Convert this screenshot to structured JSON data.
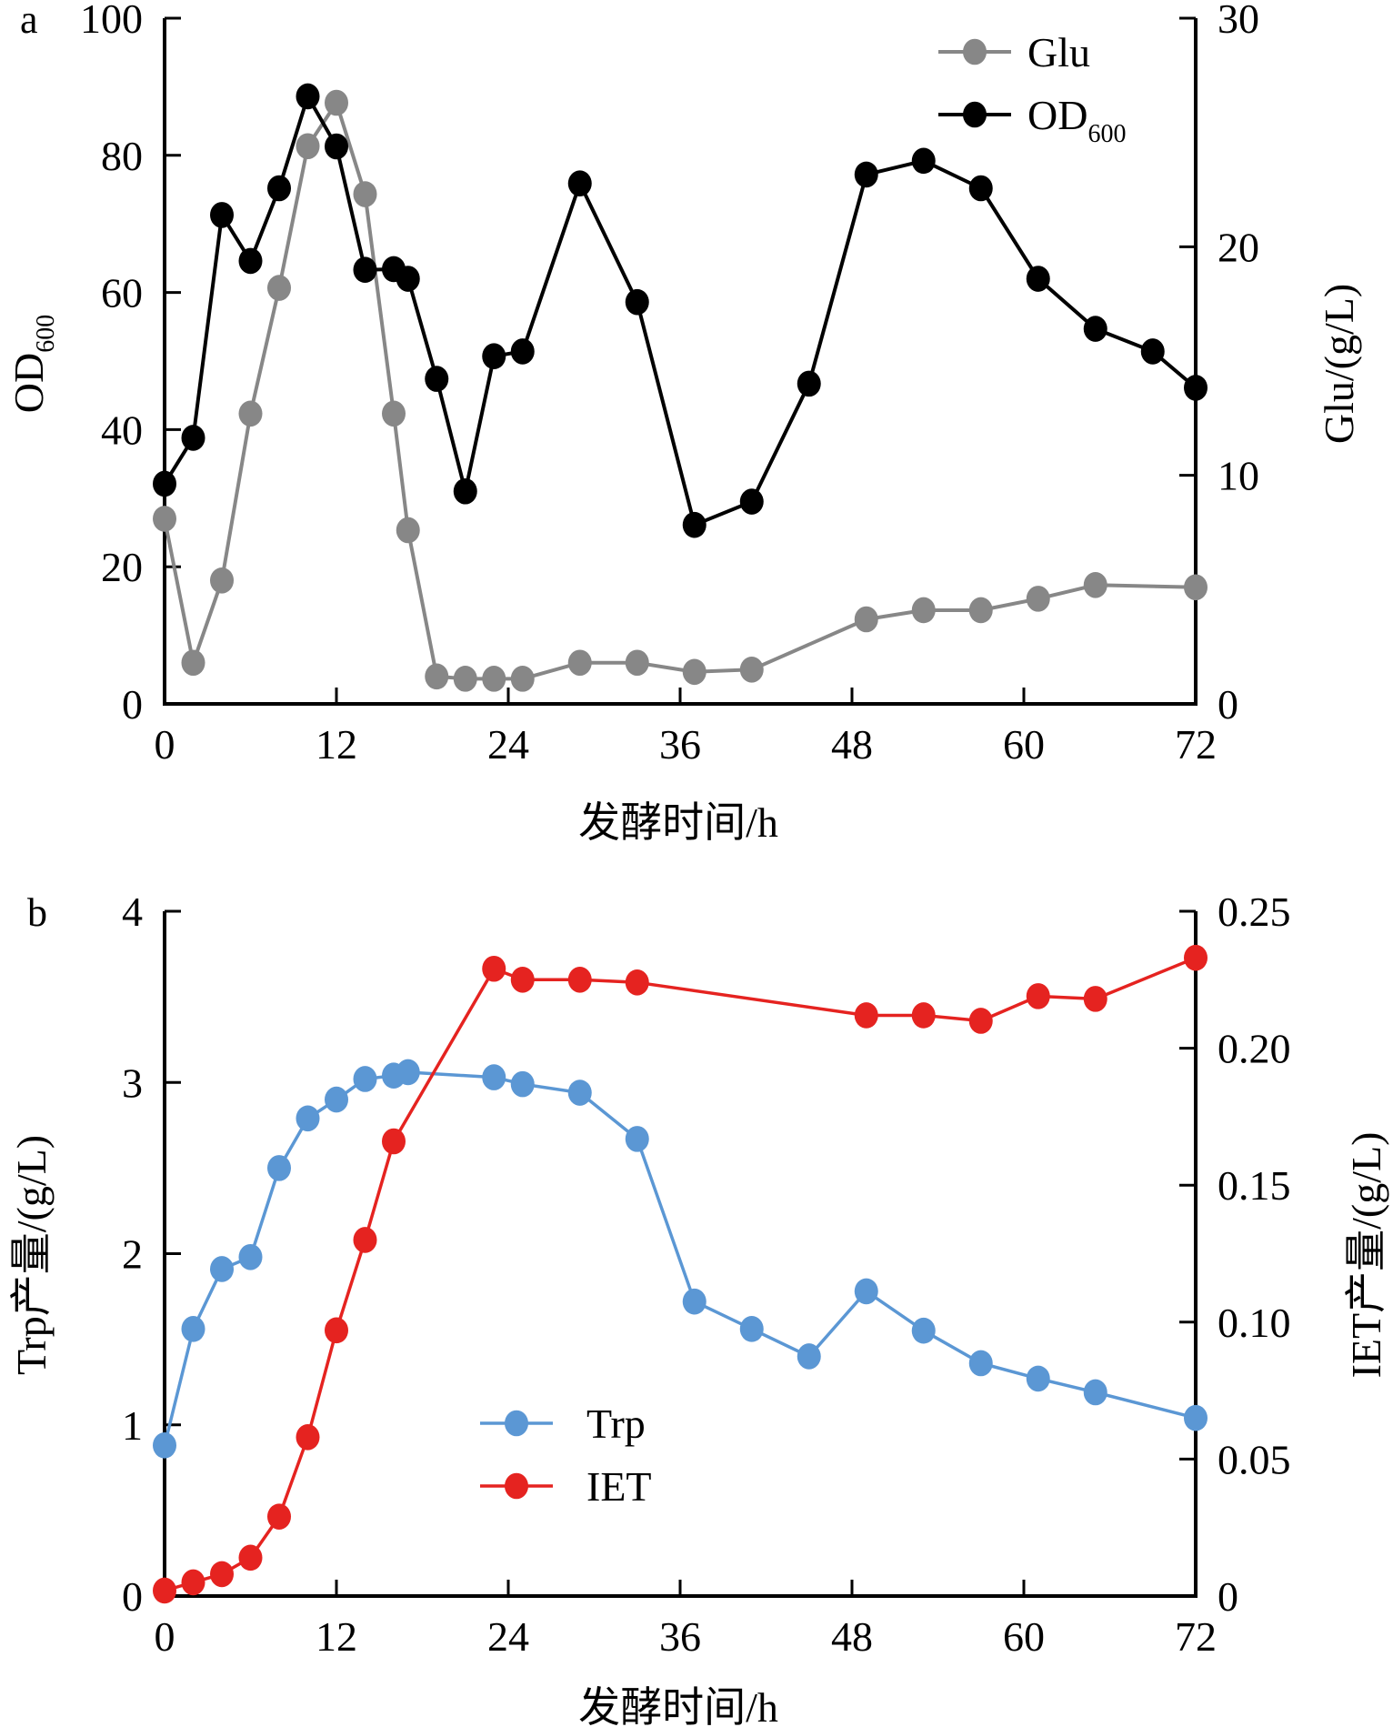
{
  "chart_data": [
    {
      "panel": "a",
      "type": "line",
      "xlabel": "发酵时间/h",
      "x_ticks": [
        0,
        12,
        24,
        36,
        48,
        60,
        72
      ],
      "xlim": [
        0,
        72
      ],
      "y_left": {
        "label_main": "OD",
        "label_sub": "600",
        "ticks": [
          0,
          20,
          40,
          60,
          80,
          100
        ],
        "lim": [
          0,
          100
        ]
      },
      "y_right": {
        "label": "Glu/(g/L)",
        "ticks": [
          0,
          10,
          20,
          30
        ],
        "lim": [
          0,
          30
        ]
      },
      "legend_position": "top-right",
      "grid": false,
      "series": [
        {
          "name": "Glu",
          "axis": "right",
          "color": "#878787",
          "x": [
            0,
            2,
            4,
            6,
            8,
            10,
            12,
            14,
            16,
            17,
            19,
            21,
            23,
            25,
            29,
            33,
            37,
            41,
            49,
            53,
            57,
            61,
            65,
            72
          ],
          "values": [
            8.1,
            1.8,
            5.4,
            12.7,
            18.2,
            24.4,
            26.3,
            22.3,
            12.7,
            7.6,
            1.2,
            1.1,
            1.1,
            1.1,
            1.8,
            1.8,
            1.4,
            1.5,
            3.7,
            4.1,
            4.1,
            4.6,
            5.2,
            5.1
          ]
        },
        {
          "name": "OD",
          "name_sub": "600",
          "axis": "left",
          "color": "#000000",
          "x": [
            0,
            2,
            4,
            6,
            8,
            10,
            12,
            14,
            16,
            17,
            19,
            21,
            23,
            25,
            29,
            33,
            37,
            41,
            45,
            49,
            53,
            57,
            61,
            65,
            69,
            72
          ],
          "values": [
            32.1,
            38.8,
            71.3,
            64.6,
            75.2,
            88.6,
            81.3,
            63.3,
            63.4,
            62.0,
            47.4,
            31.0,
            50.7,
            51.4,
            75.9,
            58.6,
            26.1,
            29.5,
            46.7,
            77.2,
            79.2,
            75.2,
            62.0,
            54.7,
            51.4,
            46.1
          ]
        }
      ]
    },
    {
      "panel": "b",
      "type": "line",
      "xlabel": "发酵时间/h",
      "x_ticks": [
        0,
        12,
        24,
        36,
        48,
        60,
        72
      ],
      "xlim": [
        0,
        72
      ],
      "y_left": {
        "label": "Trp产量/(g/L)",
        "ticks": [
          0,
          1,
          2,
          3,
          4
        ],
        "tick_labels": [
          "0",
          "1",
          "2",
          "3",
          "4"
        ],
        "lim": [
          0,
          4
        ]
      },
      "y_right": {
        "label": "IET产量/(g/L)",
        "ticks": [
          0,
          0.05,
          0.1,
          0.15,
          0.2,
          0.25
        ],
        "tick_labels": [
          "0",
          "0.05",
          "0.10",
          "0.15",
          "0.20",
          "0.25"
        ],
        "lim": [
          0,
          0.25
        ]
      },
      "legend_position": "bottom-center",
      "grid": false,
      "series": [
        {
          "name": "Trp",
          "axis": "left",
          "color": "#5b97d4",
          "x": [
            0,
            2,
            4,
            6,
            8,
            10,
            12,
            14,
            16,
            17,
            23,
            25,
            29,
            33,
            37,
            41,
            45,
            49,
            53,
            57,
            61,
            65,
            72
          ],
          "values": [
            0.88,
            1.56,
            1.91,
            1.98,
            2.5,
            2.79,
            2.9,
            3.02,
            3.04,
            3.06,
            3.03,
            2.99,
            2.94,
            2.67,
            1.72,
            1.56,
            1.4,
            1.78,
            1.55,
            1.36,
            1.27,
            1.19,
            1.04
          ]
        },
        {
          "name": "IET",
          "axis": "right",
          "color": "#e52320",
          "x": [
            0,
            2,
            4,
            6,
            8,
            10,
            12,
            14,
            16,
            23,
            25,
            29,
            33,
            49,
            53,
            57,
            61,
            65,
            72
          ],
          "values": [
            0.002,
            0.005,
            0.008,
            0.014,
            0.029,
            0.058,
            0.097,
            0.13,
            0.166,
            0.229,
            0.225,
            0.225,
            0.224,
            0.212,
            0.212,
            0.21,
            0.219,
            0.218,
            0.233
          ]
        }
      ]
    }
  ]
}
